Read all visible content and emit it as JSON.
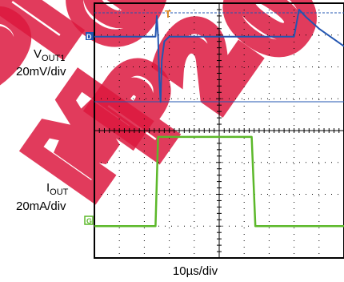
{
  "chart_data": {
    "type": "line",
    "title": "",
    "xlabel": "10µs/div",
    "x_divisions": 10,
    "y_divisions": 8,
    "colors": {
      "vout": "#2255b0",
      "iout": "#5cb82a",
      "watermark": "#d8002a",
      "trigger": "#e08a20",
      "grid": "#000000"
    },
    "channels": [
      {
        "name_main": "V",
        "name_sub": "OUT1",
        "scale": "20mV/div",
        "marker": "D",
        "note": "baseline with transient spike"
      },
      {
        "name_main": "I",
        "name_sub": "OUT",
        "scale": "20mA/div",
        "marker": "G",
        "note": "step load current"
      }
    ],
    "series": [
      {
        "name": "VOUT1",
        "x_div": [
          0,
          2.45,
          2.5,
          2.55,
          2.6,
          2.65,
          2.7,
          2.8,
          3.0,
          6.0,
          8.0,
          8.2,
          8.5,
          9.0,
          10.0
        ],
        "y_div": [
          2.95,
          2.95,
          3.6,
          2.95,
          1.6,
          0.9,
          2.2,
          2.8,
          2.95,
          2.95,
          2.95,
          3.8,
          3.55,
          3.2,
          2.65
        ]
      },
      {
        "name": "IOUT",
        "x_div": [
          0,
          2.45,
          2.55,
          6.3,
          6.45,
          10.0
        ],
        "y_div": [
          -3.0,
          -3.0,
          -0.2,
          -0.2,
          -3.0,
          -3.0
        ]
      }
    ]
  },
  "watermark_text": "MP2 SIGMA"
}
